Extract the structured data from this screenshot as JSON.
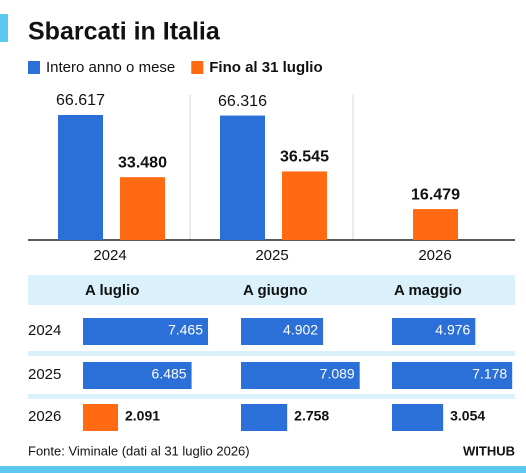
{
  "chart_data": [
    {
      "type": "bar",
      "title": "Sbarcati in Italia",
      "categories": [
        "2024",
        "2025",
        "2026"
      ],
      "series": [
        {
          "name": "Intero anno o mese",
          "color": "#2b6fd9",
          "values": [
            66617,
            66316,
            null
          ],
          "value_labels": [
            "66.617",
            "66.316",
            null
          ]
        },
        {
          "name": "Fino al 31 luglio",
          "color": "#ff6a13",
          "values": [
            33480,
            36545,
            16479
          ],
          "value_labels": [
            "33.480",
            "36.545",
            "16.479"
          ]
        }
      ]
    },
    {
      "type": "bartable",
      "columns": [
        "A luglio",
        "A giugno",
        "A maggio"
      ],
      "rows": [
        {
          "label": "2024",
          "values": [
            7465,
            4902,
            4976
          ],
          "value_labels": [
            "7.465",
            "4.902",
            "4.976"
          ],
          "colors": [
            "#2b6fd9",
            "#2b6fd9",
            "#2b6fd9"
          ]
        },
        {
          "label": "2025",
          "values": [
            6485,
            7089,
            7178
          ],
          "value_labels": [
            "6.485",
            "7.089",
            "7.178"
          ],
          "colors": [
            "#2b6fd9",
            "#2b6fd9",
            "#2b6fd9"
          ]
        },
        {
          "label": "2026",
          "values": [
            2091,
            2758,
            3054
          ],
          "value_labels": [
            "2.091",
            "2.758",
            "3.054"
          ],
          "colors": [
            "#ff6a13",
            "#2b6fd9",
            "#2b6fd9"
          ]
        }
      ]
    }
  ],
  "source": "Fonte: Viminale (dati al 31 luglio 2026)",
  "brand": "WITHUB"
}
